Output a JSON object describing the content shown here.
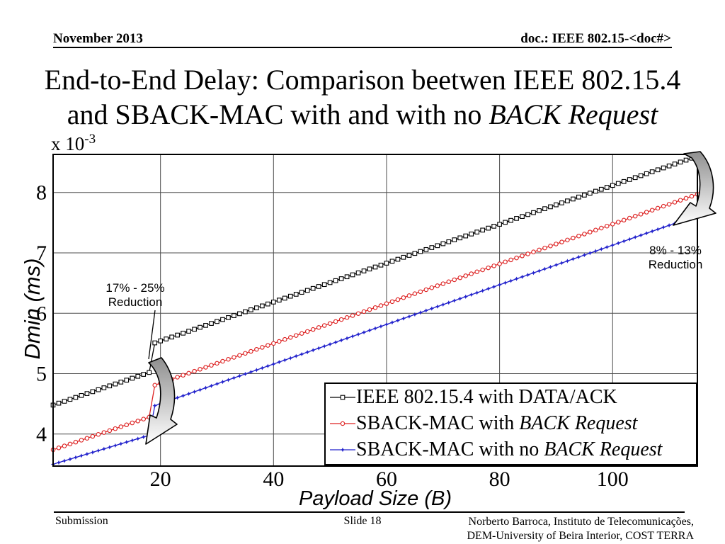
{
  "header": {
    "date": "November 2013",
    "doc_label": "doc.: IEEE 802.15-<doc#>"
  },
  "title": {
    "line1": "End-to-End Delay: Comparison beetwen IEEE 802.15.4",
    "line2_prefix": "and SBACK-MAC with and with no ",
    "line2_italic": "BACK Request"
  },
  "chart_data": {
    "type": "line",
    "xlabel": "Payload Size (B)",
    "ylabel": "Dmin (ms)",
    "offset_label": {
      "base": "x 10",
      "exp": "-3"
    },
    "xlim": [
      1,
      115
    ],
    "ylim": [
      3.47,
      8.63
    ],
    "xticks": [
      20,
      40,
      60,
      80,
      100
    ],
    "yticks": [
      4,
      5,
      6,
      7,
      8
    ],
    "grid": true,
    "grid_color": "#4d4d4d",
    "legend_position": "lower right",
    "marker_every": 1,
    "series": [
      {
        "label": "IEEE 802.15.4 with DATA/ACK",
        "label_prefix": "IEEE 802.15.4 with DATA/ACK",
        "label_italic": "",
        "color": "#000000",
        "marker": "square",
        "points": [
          [
            1,
            4.48
          ],
          [
            18,
            5.02
          ],
          [
            19,
            5.51
          ],
          [
            115,
            8.6
          ]
        ]
      },
      {
        "label": "SBACK-MAC with BACK Request",
        "label_prefix": "SBACK-MAC with ",
        "label_italic": "BACK Request",
        "color": "#dd2222",
        "marker": "circle",
        "points": [
          [
            1,
            3.74
          ],
          [
            18,
            4.28
          ],
          [
            19,
            4.81
          ],
          [
            115,
            7.97
          ]
        ]
      },
      {
        "label": "SBACK-MAC with no BACK Request",
        "label_prefix": "SBACK-MAC with no ",
        "label_italic": "BACK Request",
        "color": "#2222cc",
        "marker": "star",
        "points": [
          [
            1,
            3.5
          ],
          [
            18,
            3.98
          ],
          [
            19,
            4.47
          ],
          [
            115,
            7.62
          ]
        ]
      }
    ],
    "annotations": [
      {
        "line1": "17% - 25%",
        "line2": "Reduction"
      },
      {
        "line1": "8% - 13%",
        "line2": "Reduction"
      }
    ]
  },
  "footer": {
    "left": "Submission",
    "center": "Slide 18",
    "right_line1": "Norberto Barroca, Instituto de Telecomunicações,",
    "right_line2": "DEM-University of Beira Interior, COST TERRA"
  }
}
